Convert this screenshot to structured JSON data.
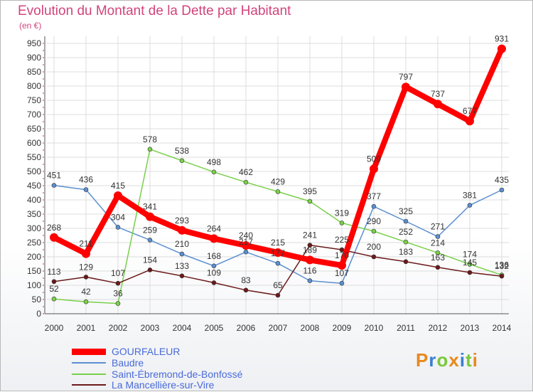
{
  "title": "Evolution du Montant de la Dette par Habitant",
  "subtitle": "(en €)",
  "logo": "Proxiti",
  "colors": {
    "title": "#d2447c",
    "gourfaleur": "#ff0000",
    "baudre": "#5b8fd0",
    "saint": "#7ad04a",
    "mancelliere": "#6b1a1a"
  },
  "chart_data": {
    "type": "line",
    "x": [
      "2000",
      "2001",
      "2002",
      "2003",
      "2004",
      "2005",
      "2006",
      "2007",
      "2008",
      "2009",
      "2010",
      "2011",
      "2012",
      "2013",
      "2014"
    ],
    "y_ticks": [
      "0",
      "50",
      "100",
      "150",
      "200",
      "250",
      "300",
      "350",
      "400",
      "450",
      "500",
      "550",
      "600",
      "650",
      "700",
      "750",
      "800",
      "850",
      "900",
      "950"
    ],
    "ylim": [
      0,
      950
    ],
    "grid": true,
    "legend_position": "bottom-left",
    "series": [
      {
        "name": "GOURFALEUR",
        "color": "#ff0000",
        "width": 8,
        "values": [
          268,
          211,
          415,
          341,
          293,
          264,
          240,
          215,
          189,
          170,
          509,
          797,
          737,
          677,
          931
        ],
        "labels": [
          "268",
          "211",
          "415",
          "341",
          "293",
          "264",
          "240",
          "215",
          "189",
          "170",
          "509",
          "797",
          "737",
          "677",
          "931"
        ]
      },
      {
        "name": "Baudre",
        "color": "#5b8fd0",
        "width": 1.5,
        "values": [
          451,
          436,
          304,
          259,
          210,
          168,
          217,
          177,
          116,
          107,
          377,
          325,
          271,
          381,
          435
        ],
        "labels": [
          "451",
          "436",
          "304",
          "259",
          "210",
          "168",
          "217",
          "177",
          "116",
          "107",
          "377",
          "325",
          "271",
          "381",
          "435"
        ]
      },
      {
        "name": "Saint-Ébremond-de-Bonfossé",
        "color": "#7ad04a",
        "width": 1.5,
        "values": [
          52,
          42,
          36,
          578,
          538,
          498,
          462,
          429,
          395,
          319,
          290,
          252,
          214,
          174,
          136
        ],
        "labels": [
          "52",
          "42",
          "36",
          "578",
          "538",
          "498",
          "462",
          "429",
          "395",
          "319",
          "290",
          "252",
          "214",
          "174",
          "136"
        ]
      },
      {
        "name": "La Mancellière-sur-Vire",
        "color": "#6b1a1a",
        "width": 1.5,
        "values": [
          113,
          129,
          107,
          154,
          133,
          109,
          83,
          65,
          241,
          225,
          200,
          183,
          163,
          145,
          132
        ],
        "labels": [
          "113",
          "129",
          "107",
          "154",
          "133",
          "109",
          "83",
          "65",
          "241",
          "225",
          "200",
          "183",
          "163",
          "145",
          "132"
        ]
      }
    ]
  }
}
